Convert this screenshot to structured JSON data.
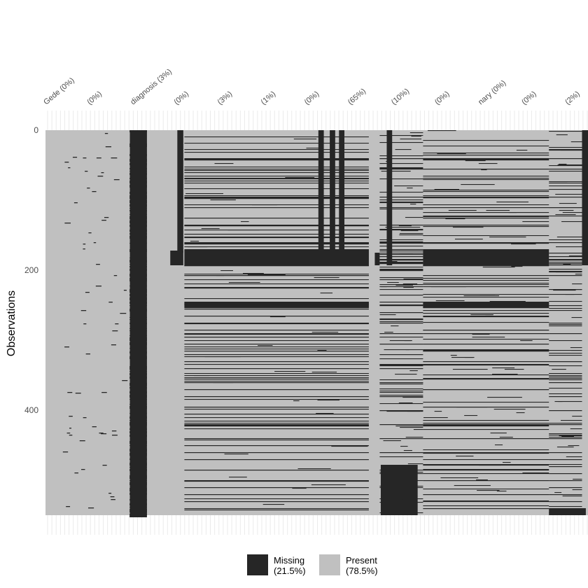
{
  "chart_data": {
    "type": "heatmap",
    "title": "",
    "xlabel": "",
    "ylabel": "Observations",
    "n_observations": 550,
    "y_ticks": [
      0,
      200,
      400
    ],
    "column_labels_visible": [
      "Gede (0%)",
      "(0%)",
      "diagnosis (3%)",
      "(0%)",
      "(3%)",
      "(1%)",
      "(0%)",
      "(65%)",
      "(10%)",
      "(0%)",
      "nary (0%)",
      "(0%)",
      "(2%)"
    ],
    "legend": {
      "position": "bottom",
      "items": [
        {
          "label": "Missing",
          "pct": "(21.5%)",
          "color": "#262626"
        },
        {
          "label": "Present",
          "pct": "(78.5%)",
          "color": "#c0c0c0"
        }
      ]
    },
    "colors": {
      "missing": "#262626",
      "present": "#c0c0c0",
      "grid": "#ebebeb"
    },
    "full_missing_blocks": [
      {
        "col_start": 0.1555,
        "col_end": 0.187,
        "row_start": 0,
        "row_end": 550
      },
      {
        "col_start": 0.243,
        "col_end": 0.254,
        "row_start": 0,
        "row_end": 175
      },
      {
        "col_start": 0.23,
        "col_end": 0.254,
        "row_start": 172,
        "row_end": 193
      },
      {
        "col_start": 0.503,
        "col_end": 0.513,
        "row_start": 0,
        "row_end": 172
      },
      {
        "col_start": 0.524,
        "col_end": 0.534,
        "row_start": 0,
        "row_end": 172
      },
      {
        "col_start": 0.541,
        "col_end": 0.551,
        "row_start": 0,
        "row_end": 172
      },
      {
        "col_start": 0.607,
        "col_end": 0.616,
        "row_start": 175,
        "row_end": 193
      },
      {
        "col_start": 0.629,
        "col_end": 0.639,
        "row_start": 0,
        "row_end": 193
      },
      {
        "col_start": 0.618,
        "col_end": 0.686,
        "row_start": 478,
        "row_end": 550
      },
      {
        "col_start": 0.989,
        "col_end": 1.0,
        "row_start": 0,
        "row_end": 193
      },
      {
        "col_start": 0.928,
        "col_end": 0.996,
        "row_start": 540,
        "row_end": 550
      }
    ],
    "row_bands": [
      {
        "col_start": 0.256,
        "col_end": 0.596,
        "rows": [
          40,
          41,
          42,
          55,
          68,
          69,
          95,
          96,
          97,
          110,
          125,
          135,
          136,
          160,
          161,
          162,
          170,
          171,
          172,
          173,
          174,
          175,
          176,
          177,
          178,
          179,
          180,
          181,
          182,
          183,
          184,
          185,
          186,
          187,
          188,
          189,
          190,
          191,
          192,
          193,
          207,
          225,
          245,
          246,
          247,
          248,
          249,
          250,
          251,
          252,
          253,
          255,
          265,
          275,
          285,
          290,
          291,
          295,
          305,
          315,
          320,
          330,
          340,
          355,
          360,
          370,
          380,
          395,
          405,
          420,
          421,
          422,
          440,
          450,
          460,
          470,
          485,
          500,
          510,
          520,
          530,
          540
        ]
      },
      {
        "col_start": 0.696,
        "col_end": 0.928,
        "rows": [
          40,
          41,
          55,
          68,
          95,
          96,
          110,
          125,
          135,
          160,
          161,
          170,
          171,
          172,
          173,
          174,
          175,
          176,
          177,
          178,
          179,
          180,
          181,
          182,
          183,
          184,
          185,
          186,
          187,
          188,
          189,
          190,
          191,
          192,
          193,
          207,
          245,
          246,
          247,
          248,
          249,
          250,
          251,
          252,
          253,
          265,
          285,
          290,
          305,
          315,
          330,
          355,
          370,
          395,
          420,
          421,
          440,
          460,
          485,
          500,
          520,
          540
        ]
      },
      {
        "col_start": 0.616,
        "col_end": 0.696,
        "rows": [
          40,
          55,
          95,
          110,
          135,
          160,
          170,
          175,
          180,
          185,
          190,
          200,
          210,
          220,
          235,
          245,
          250,
          260,
          275,
          290,
          305,
          320,
          340,
          360,
          380,
          400,
          420,
          440,
          460
        ]
      },
      {
        "col_start": 0.928,
        "col_end": 0.989,
        "rows": [
          40,
          55,
          95,
          110,
          160,
          175,
          180,
          185,
          190,
          192,
          207,
          250,
          290,
          330,
          360,
          380,
          400,
          420,
          440,
          460,
          470,
          480,
          490,
          500,
          510,
          520,
          530
        ]
      }
    ]
  }
}
